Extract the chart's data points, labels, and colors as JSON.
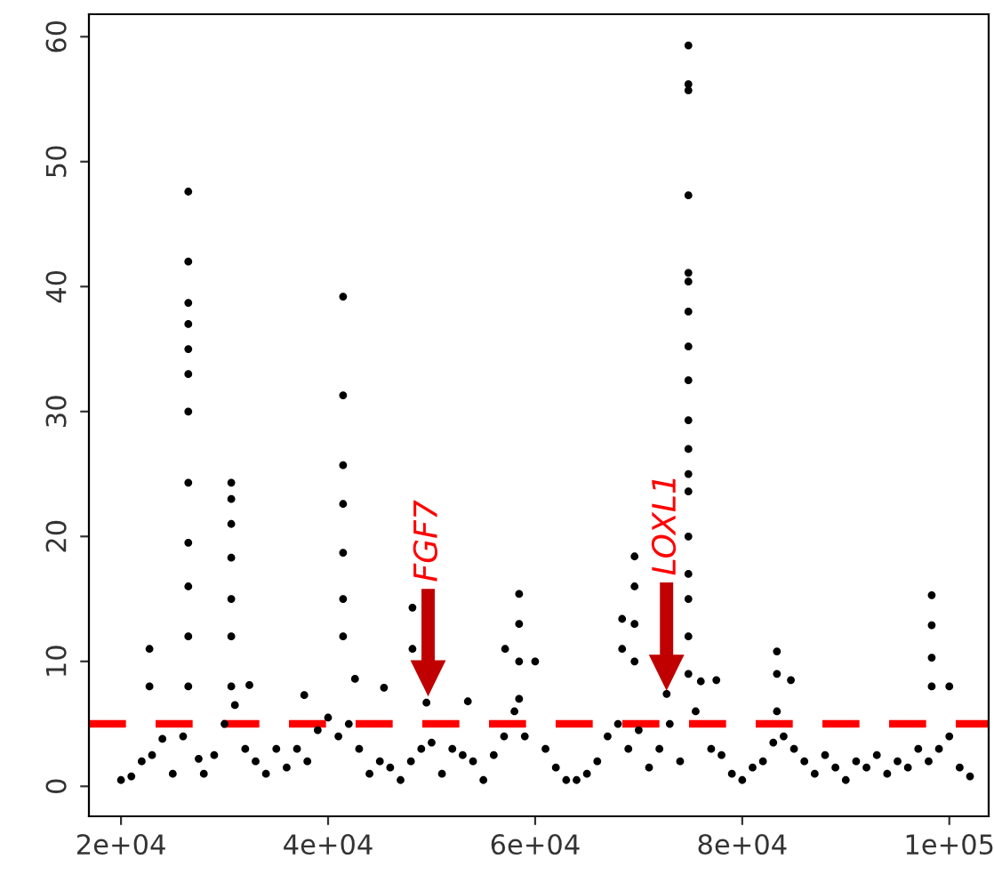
{
  "chart_data": {
    "type": "scatter",
    "x": [
      20000,
      21000,
      22000,
      22750,
      22750,
      23000,
      24000,
      25000,
      26000,
      26500,
      26500,
      26500,
      26500,
      26500,
      26500,
      26500,
      26500,
      26500,
      26500,
      26500,
      26500,
      27500,
      28000,
      29000,
      30000,
      30650,
      30650,
      30650,
      30650,
      30650,
      30650,
      30650,
      31000,
      32000,
      32400,
      33000,
      34000,
      35000,
      36000,
      37000,
      37700,
      38000,
      39000,
      40000,
      41000,
      41450,
      41450,
      41450,
      41450,
      41450,
      41450,
      41450,
      42000,
      42600,
      43000,
      44000,
      45000,
      45400,
      46000,
      47000,
      48000,
      48150,
      48150,
      49000,
      49500,
      50000,
      51000,
      52000,
      53000,
      53500,
      54000,
      55000,
      56000,
      57000,
      57100,
      58000,
      58450,
      58450,
      58450,
      58450,
      59000,
      60000,
      61000,
      62000,
      63000,
      64000,
      65000,
      66000,
      67000,
      68000,
      68400,
      68400,
      69000,
      69600,
      69600,
      69600,
      69600,
      70000,
      71000,
      72000,
      72700,
      73000,
      74000,
      74800,
      74800,
      74800,
      74800,
      74800,
      74800,
      74800,
      74800,
      74800,
      74800,
      74800,
      74800,
      74800,
      74800,
      74800,
      74800,
      74800,
      74800,
      75500,
      76000,
      77000,
      77500,
      78000,
      79000,
      80000,
      81000,
      82000,
      83000,
      83350,
      83350,
      83350,
      84000,
      84700,
      85000,
      86000,
      87000,
      88000,
      89000,
      90000,
      91000,
      92000,
      93000,
      94000,
      95000,
      96000,
      97000,
      98000,
      98300,
      98300,
      98300,
      98300,
      99000,
      100000,
      100000,
      101000,
      102000
    ],
    "values": [
      0.5,
      0.8,
      2.0,
      11,
      8,
      2.5,
      3.8,
      1.0,
      4.0,
      47.6,
      42,
      38.7,
      37,
      35,
      33,
      30,
      24.3,
      19.5,
      16,
      12,
      8,
      2.2,
      1.0,
      2.5,
      5.0,
      24.3,
      23,
      21,
      18.3,
      15,
      12,
      8,
      6.5,
      3.0,
      8.1,
      2.0,
      1.0,
      3.0,
      1.5,
      3.0,
      7.3,
      2.0,
      4.5,
      5.5,
      4.0,
      39.2,
      31.3,
      25.7,
      22.6,
      18.7,
      15,
      12,
      5.0,
      8.6,
      3.0,
      1.0,
      2.0,
      7.9,
      1.5,
      0.5,
      2.0,
      14.3,
      11,
      3.0,
      6.7,
      3.5,
      1.0,
      3.0,
      2.5,
      6.8,
      2.0,
      0.5,
      2.5,
      4.0,
      11,
      6.0,
      15.4,
      13,
      10,
      7,
      4.0,
      10,
      3.0,
      1.5,
      0.5,
      0.5,
      1.0,
      2.0,
      4.0,
      5.0,
      13.4,
      11,
      3.0,
      18.4,
      16,
      13,
      10,
      4.5,
      1.5,
      3.0,
      7.4,
      5.0,
      2.0,
      59.3,
      56.2,
      55.7,
      47.3,
      41.1,
      40.4,
      38,
      35.2,
      32.5,
      29.3,
      27,
      25,
      23.6,
      20,
      17,
      15,
      12,
      9,
      6.0,
      8.4,
      3.0,
      8.5,
      2.5,
      1.0,
      0.5,
      1.5,
      2.0,
      3.5,
      10.8,
      9,
      6,
      4.0,
      8.5,
      3.0,
      2.0,
      1.0,
      2.5,
      1.5,
      0.5,
      2.0,
      1.5,
      2.5,
      1.0,
      2.0,
      1.5,
      3.0,
      2.0,
      15.3,
      12.9,
      10.3,
      8,
      3.0,
      8,
      4.0,
      1.5,
      0.8
    ],
    "color": "#000000",
    "marker": "circle",
    "xlim": [
      16900,
      103800
    ],
    "ylim": [
      -2.4,
      61.8
    ],
    "xticks": [
      {
        "value": 20000,
        "label": "2e+04"
      },
      {
        "value": 40000,
        "label": "4e+04"
      },
      {
        "value": 60000,
        "label": "6e+04"
      },
      {
        "value": 80000,
        "label": "8e+04"
      },
      {
        "value": 100000,
        "label": "1e+05"
      }
    ],
    "yticks": [
      0,
      10,
      20,
      30,
      40,
      50,
      60
    ],
    "grid": false,
    "legend": false,
    "ref_lines": [
      {
        "axis": "y",
        "value": 5,
        "color": "#ff0000",
        "line_style": "dashed"
      }
    ],
    "annotations": [
      "FGF7",
      "LOXL1"
    ]
  }
}
